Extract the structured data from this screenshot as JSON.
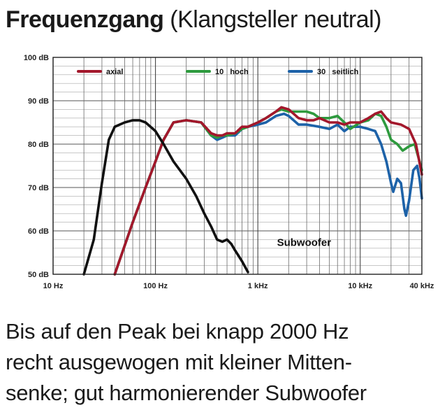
{
  "title": {
    "bold": "Frequenzgang",
    "normal": "(Klangsteller neutral)"
  },
  "caption": [
    "Bis auf den Peak bei knapp 2000 Hz",
    "recht ausgewogen mit kleiner Mitten-",
    "senke; gut harmonierender Subwoofer"
  ],
  "chart_data": {
    "type": "line",
    "x_scale": "log",
    "xlim": [
      10,
      40000
    ],
    "ylim": [
      50,
      100
    ],
    "grid": true,
    "legend_placement": "top",
    "x_tick_labels": [
      {
        "value": 10,
        "label": "10 Hz"
      },
      {
        "value": 100,
        "label": "100 Hz"
      },
      {
        "value": 1000,
        "label": "1 kHz"
      },
      {
        "value": 10000,
        "label": "10 kHz"
      },
      {
        "value": 40000,
        "label": "40 kHz"
      }
    ],
    "y_tick_labels": [
      {
        "value": 100,
        "label": "100 dB"
      },
      {
        "value": 90,
        "label": "90 dB"
      },
      {
        "value": 80,
        "label": "80 dB"
      },
      {
        "value": 70,
        "label": "70 dB"
      },
      {
        "value": 60,
        "label": "60 dB"
      },
      {
        "value": 50,
        "label": "50 dB"
      }
    ],
    "annotation": {
      "text": "Subwoofer",
      "x": 1400,
      "y": 57.5
    },
    "series": [
      {
        "name": "30   seitlich",
        "color": "#1d62a8",
        "points": [
          [
            40,
            50
          ],
          [
            60,
            62
          ],
          [
            80,
            70
          ],
          [
            100,
            76
          ],
          [
            120,
            81
          ],
          [
            150,
            85
          ],
          [
            200,
            85.5
          ],
          [
            280,
            85
          ],
          [
            350,
            82
          ],
          [
            400,
            81
          ],
          [
            450,
            81.5
          ],
          [
            500,
            82
          ],
          [
            600,
            82
          ],
          [
            700,
            83.5
          ],
          [
            800,
            84
          ],
          [
            1000,
            84.5
          ],
          [
            1200,
            85
          ],
          [
            1500,
            86.5
          ],
          [
            1800,
            87
          ],
          [
            2000,
            86.5
          ],
          [
            2500,
            84.5
          ],
          [
            3000,
            84.5
          ],
          [
            4000,
            84
          ],
          [
            5000,
            83.5
          ],
          [
            6000,
            84.5
          ],
          [
            7000,
            83
          ],
          [
            8000,
            84
          ],
          [
            10000,
            84
          ],
          [
            12000,
            83.5
          ],
          [
            14000,
            83
          ],
          [
            16000,
            80
          ],
          [
            18000,
            76
          ],
          [
            20000,
            71
          ],
          [
            21000,
            69
          ],
          [
            22000,
            70.5
          ],
          [
            23000,
            72
          ],
          [
            25000,
            71
          ],
          [
            27000,
            65
          ],
          [
            28000,
            63.5
          ],
          [
            30000,
            67
          ],
          [
            33000,
            74
          ],
          [
            36000,
            75
          ],
          [
            38000,
            72
          ],
          [
            40000,
            67.5
          ]
        ]
      },
      {
        "name": "10   hoch",
        "color": "#2e9a3e",
        "points": [
          [
            40,
            50
          ],
          [
            60,
            62
          ],
          [
            80,
            70
          ],
          [
            100,
            76
          ],
          [
            120,
            81
          ],
          [
            150,
            85
          ],
          [
            200,
            85.5
          ],
          [
            280,
            85
          ],
          [
            350,
            82
          ],
          [
            400,
            81.5
          ],
          [
            450,
            82
          ],
          [
            500,
            82
          ],
          [
            600,
            82.5
          ],
          [
            700,
            83.5
          ],
          [
            800,
            84
          ],
          [
            1000,
            85
          ],
          [
            1200,
            86
          ],
          [
            1500,
            87.5
          ],
          [
            1700,
            88
          ],
          [
            2000,
            87.5
          ],
          [
            2500,
            87.5
          ],
          [
            3000,
            87.5
          ],
          [
            3500,
            87
          ],
          [
            4000,
            86
          ],
          [
            5000,
            86
          ],
          [
            6000,
            86.5
          ],
          [
            7000,
            85
          ],
          [
            8000,
            83.5
          ],
          [
            10000,
            85
          ],
          [
            12000,
            85.5
          ],
          [
            14000,
            87
          ],
          [
            16000,
            86.5
          ],
          [
            18000,
            84
          ],
          [
            20000,
            81
          ],
          [
            23000,
            80
          ],
          [
            26000,
            78.5
          ],
          [
            30000,
            79.5
          ],
          [
            34000,
            80
          ],
          [
            38000,
            76
          ],
          [
            40000,
            74
          ]
        ]
      },
      {
        "name": "axial",
        "color": "#a3182c",
        "points": [
          [
            40,
            50
          ],
          [
            60,
            62
          ],
          [
            80,
            70
          ],
          [
            100,
            76
          ],
          [
            120,
            81
          ],
          [
            150,
            85
          ],
          [
            200,
            85.5
          ],
          [
            280,
            85
          ],
          [
            350,
            82.5
          ],
          [
            400,
            82
          ],
          [
            450,
            82
          ],
          [
            500,
            82.5
          ],
          [
            600,
            82.5
          ],
          [
            700,
            84
          ],
          [
            800,
            84
          ],
          [
            1000,
            85
          ],
          [
            1200,
            86
          ],
          [
            1500,
            87.5
          ],
          [
            1700,
            88.5
          ],
          [
            2000,
            88
          ],
          [
            2500,
            86
          ],
          [
            3000,
            85.5
          ],
          [
            3500,
            85.5
          ],
          [
            4000,
            86
          ],
          [
            5000,
            85
          ],
          [
            6000,
            85
          ],
          [
            7000,
            84.5
          ],
          [
            8000,
            85
          ],
          [
            10000,
            85
          ],
          [
            12000,
            86
          ],
          [
            14000,
            87
          ],
          [
            16000,
            87.5
          ],
          [
            18000,
            86
          ],
          [
            20000,
            85
          ],
          [
            25000,
            84.5
          ],
          [
            30000,
            83.5
          ],
          [
            35000,
            80
          ],
          [
            40000,
            73
          ]
        ]
      },
      {
        "name": "Subwoofer",
        "color": "#111111",
        "points": [
          [
            20,
            50
          ],
          [
            25,
            58
          ],
          [
            30,
            71
          ],
          [
            35,
            81
          ],
          [
            40,
            84
          ],
          [
            50,
            85
          ],
          [
            60,
            85.5
          ],
          [
            70,
            85.5
          ],
          [
            80,
            85
          ],
          [
            100,
            83
          ],
          [
            120,
            80
          ],
          [
            150,
            76
          ],
          [
            200,
            72
          ],
          [
            250,
            68
          ],
          [
            300,
            64
          ],
          [
            350,
            61
          ],
          [
            400,
            58
          ],
          [
            450,
            57.5
          ],
          [
            500,
            58
          ],
          [
            550,
            57
          ],
          [
            600,
            55.5
          ],
          [
            700,
            53
          ],
          [
            800,
            50.5
          ]
        ]
      }
    ]
  }
}
